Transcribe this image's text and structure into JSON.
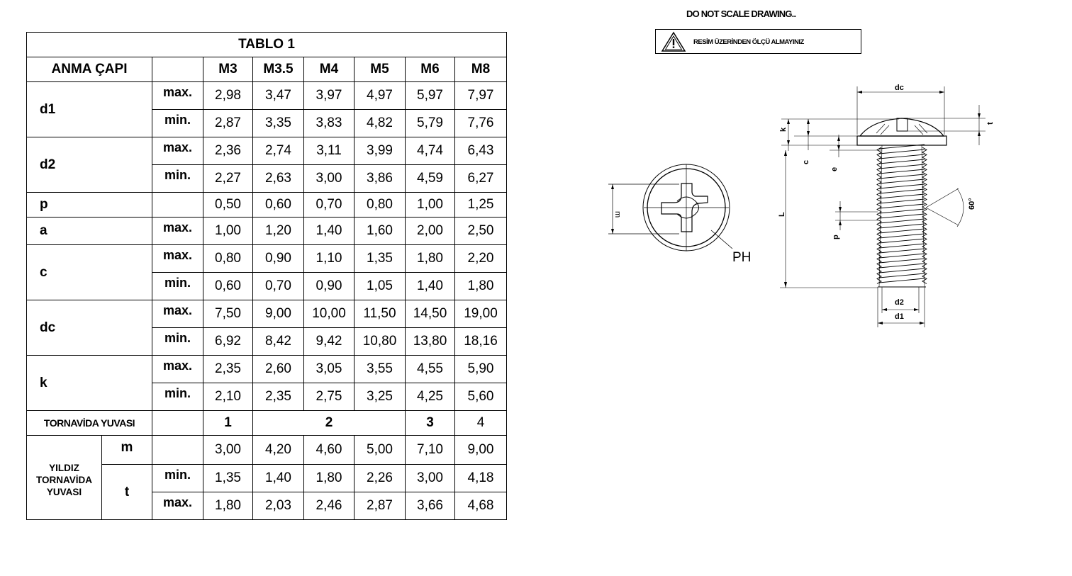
{
  "table": {
    "title": "TABLO 1",
    "header_label": "ANMA ÇAPI",
    "sizes": [
      "M3",
      "M3.5",
      "M4",
      "M5",
      "M6",
      "M8"
    ],
    "rows": {
      "d1": {
        "label": "d1",
        "max_label": "max.",
        "min_label": "min.",
        "max": [
          "2,98",
          "3,47",
          "3,97",
          "4,97",
          "5,97",
          "7,97"
        ],
        "min": [
          "2,87",
          "3,35",
          "3,83",
          "4,82",
          "5,79",
          "7,76"
        ]
      },
      "d2": {
        "label": "d2",
        "max_label": "max.",
        "min_label": "min.",
        "max": [
          "2,36",
          "2,74",
          "3,11",
          "3,99",
          "4,74",
          "6,43"
        ],
        "min": [
          "2,27",
          "2,63",
          "3,00",
          "3,86",
          "4,59",
          "6,27"
        ]
      },
      "p": {
        "label": "p",
        "values": [
          "0,50",
          "0,60",
          "0,70",
          "0,80",
          "1,00",
          "1,25"
        ]
      },
      "a": {
        "label": "a",
        "max_label": "max.",
        "values": [
          "1,00",
          "1,20",
          "1,40",
          "1,60",
          "2,00",
          "2,50"
        ]
      },
      "c": {
        "label": "c",
        "max_label": "max.",
        "min_label": "min.",
        "max": [
          "0,80",
          "0,90",
          "1,10",
          "1,35",
          "1,80",
          "2,20"
        ],
        "min": [
          "0,60",
          "0,70",
          "0,90",
          "1,05",
          "1,40",
          "1,80"
        ]
      },
      "dc": {
        "label": "dc",
        "max_label": "max.",
        "min_label": "min.",
        "max": [
          "7,50",
          "9,00",
          "10,00",
          "11,50",
          "14,50",
          "19,00"
        ],
        "min": [
          "6,92",
          "8,42",
          "9,42",
          "10,80",
          "13,80",
          "18,16"
        ]
      },
      "k": {
        "label": "k",
        "max_label": "max.",
        "min_label": "min.",
        "max": [
          "2,35",
          "2,60",
          "3,05",
          "3,55",
          "4,55",
          "5,90"
        ],
        "min": [
          "2,10",
          "2,35",
          "2,75",
          "3,25",
          "4,25",
          "5,60"
        ]
      }
    },
    "slot": {
      "label": "TORNAVİDA YUVASI",
      "values": [
        "1",
        "2",
        "3",
        "4"
      ]
    },
    "star": {
      "label_line1": "YILDIZ",
      "label_line2": "TORNAVİDA",
      "label_line3": "YUVASI",
      "m_label": "m",
      "m_values": [
        "3,00",
        "4,20",
        "4,60",
        "5,00",
        "7,10",
        "9,00"
      ],
      "t_label": "t",
      "t_min_label": "min.",
      "t_min": [
        "1,35",
        "1,40",
        "1,80",
        "2,26",
        "3,00",
        "4,18"
      ],
      "t_max_label": "max.",
      "t_max": [
        "1,80",
        "2,03",
        "2,46",
        "2,87",
        "3,66",
        "4,68"
      ]
    }
  },
  "notes": {
    "scale_warning": "DO NOT SCALE DRAWING..",
    "measure_warning": "RESİM ÜZERİNDEN ÖLÇÜ ALMAYINIZ"
  },
  "drawing": {
    "labels": {
      "dc": "dc",
      "k": "k",
      "t": "t",
      "c": "c",
      "e": "e",
      "L": "L",
      "p": "p",
      "angle": "60°",
      "d2": "d2",
      "d1": "d1",
      "m": "m",
      "ph": "PH"
    }
  }
}
